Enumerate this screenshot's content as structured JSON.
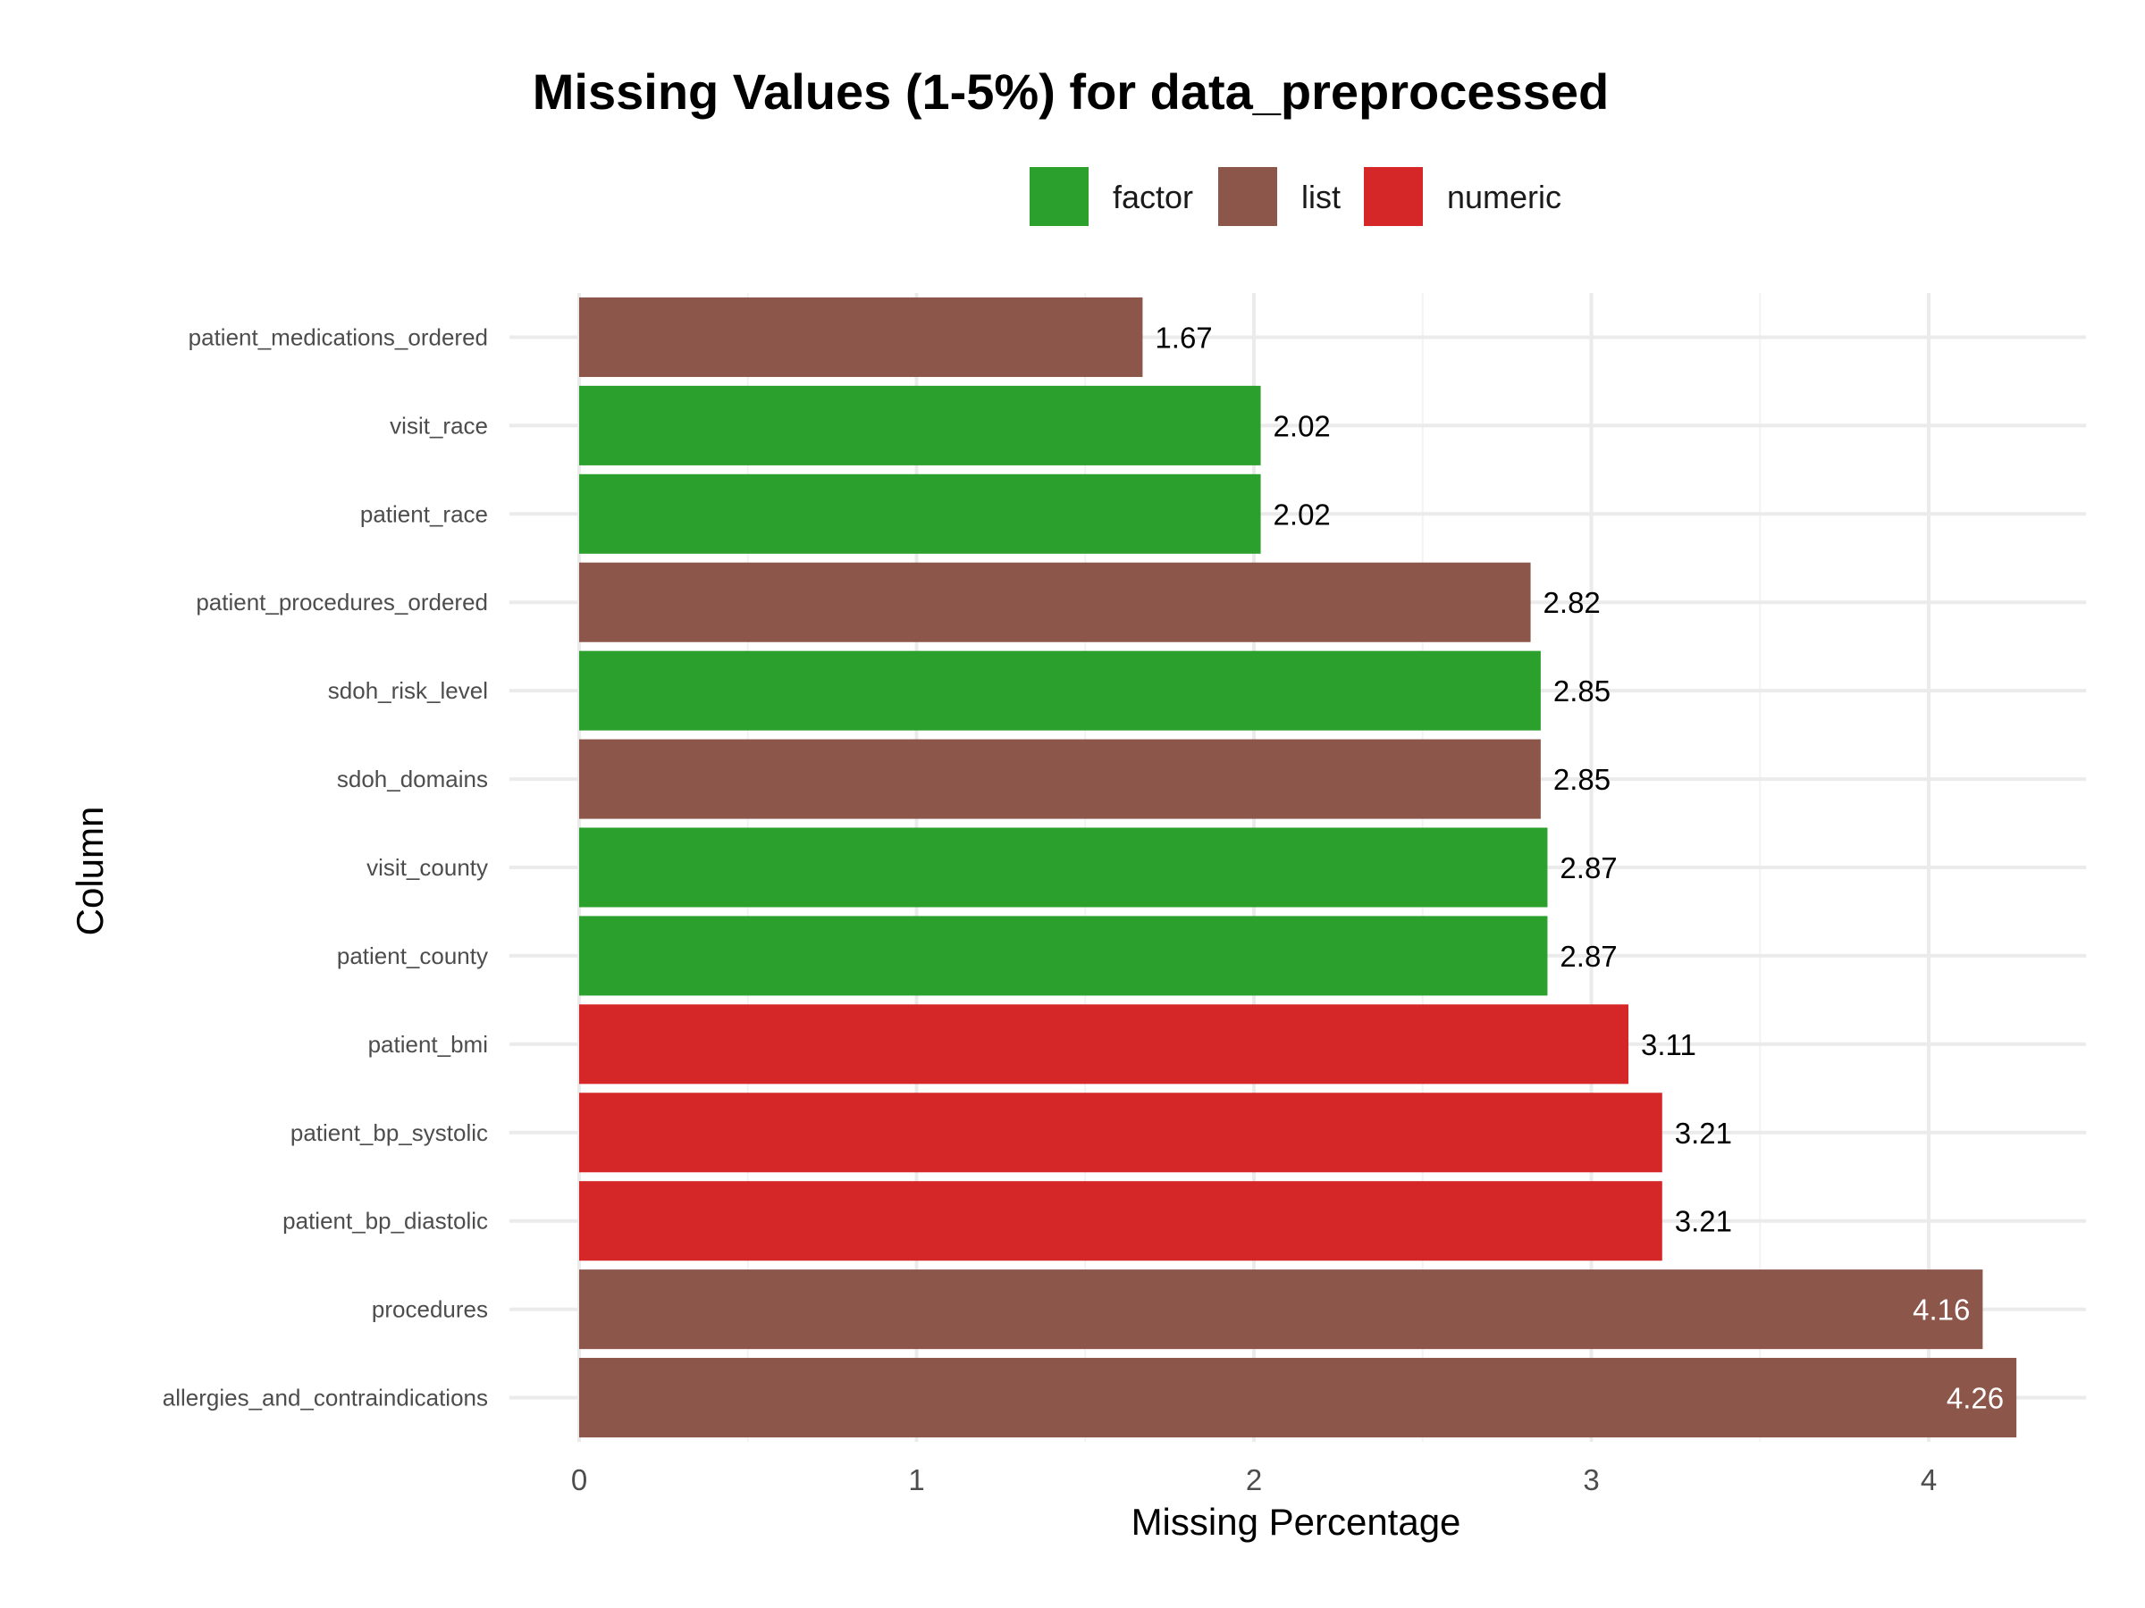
{
  "chart_data": {
    "type": "bar",
    "orientation": "horizontal",
    "title": "Missing Values (1-5%) for data_preprocessed",
    "xlabel": "Missing Percentage",
    "ylabel": "Column",
    "xlim": [
      0,
      4.4
    ],
    "xticks": [
      "0",
      "1",
      "2",
      "3",
      "4"
    ],
    "legend_position": "top",
    "legend": [
      {
        "name": "factor",
        "color": "#2ca02c"
      },
      {
        "name": "list",
        "color": "#8c564b"
      },
      {
        "name": "numeric",
        "color": "#d62728"
      }
    ],
    "bars": [
      {
        "category": "patient_medications_ordered",
        "value": 1.67,
        "label": "1.67",
        "type": "list"
      },
      {
        "category": "visit_race",
        "value": 2.02,
        "label": "2.02",
        "type": "factor"
      },
      {
        "category": "patient_race",
        "value": 2.02,
        "label": "2.02",
        "type": "factor"
      },
      {
        "category": "patient_procedures_ordered",
        "value": 2.82,
        "label": "2.82",
        "type": "list"
      },
      {
        "category": "sdoh_risk_level",
        "value": 2.85,
        "label": "2.85",
        "type": "factor"
      },
      {
        "category": "sdoh_domains",
        "value": 2.85,
        "label": "2.85",
        "type": "list"
      },
      {
        "category": "visit_county",
        "value": 2.87,
        "label": "2.87",
        "type": "factor"
      },
      {
        "category": "patient_county",
        "value": 2.87,
        "label": "2.87",
        "type": "factor"
      },
      {
        "category": "patient_bmi",
        "value": 3.11,
        "label": "3.11",
        "type": "numeric"
      },
      {
        "category": "patient_bp_systolic",
        "value": 3.21,
        "label": "3.21",
        "type": "numeric"
      },
      {
        "category": "patient_bp_diastolic",
        "value": 3.21,
        "label": "3.21",
        "type": "numeric"
      },
      {
        "category": "procedures",
        "value": 4.16,
        "label": "4.16",
        "type": "list"
      },
      {
        "category": "allergies_and_contraindications",
        "value": 4.26,
        "label": "4.26",
        "type": "list"
      }
    ],
    "inside_label_color": "#ffffff",
    "outside_label_color": "#000000"
  }
}
